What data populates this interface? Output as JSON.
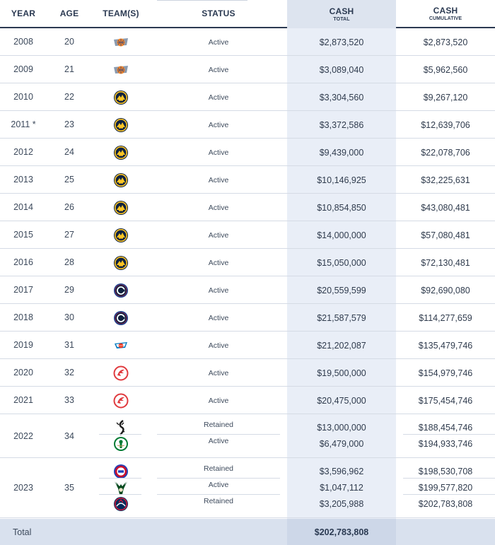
{
  "header": {
    "year": "YEAR",
    "age": "AGE",
    "teams": "TEAM(S)",
    "status": "STATUS",
    "cash_total": "CASH",
    "cash_total_sub": "TOTAL",
    "cash_cumulative": "CASH",
    "cash_cumulative_sub": "CUMULATIVE"
  },
  "rows": [
    {
      "year": "2008",
      "age": "20",
      "entries": [
        {
          "team_icon": "knicks-logo-icon",
          "status": "Active",
          "cash": "$2,873,520",
          "cumulative": "$2,873,520"
        }
      ]
    },
    {
      "year": "2009",
      "age": "21",
      "entries": [
        {
          "team_icon": "knicks-logo-icon",
          "status": "Active",
          "cash": "$3,089,040",
          "cumulative": "$5,962,560"
        }
      ]
    },
    {
      "year": "2010",
      "age": "22",
      "entries": [
        {
          "team_icon": "nuggets-logo-icon",
          "status": "Active",
          "cash": "$3,304,560",
          "cumulative": "$9,267,120"
        }
      ]
    },
    {
      "year": "2011 *",
      "age": "23",
      "entries": [
        {
          "team_icon": "nuggets-logo-icon",
          "status": "Active",
          "cash": "$3,372,586",
          "cumulative": "$12,639,706"
        }
      ]
    },
    {
      "year": "2012",
      "age": "24",
      "entries": [
        {
          "team_icon": "nuggets-logo-icon",
          "status": "Active",
          "cash": "$9,439,000",
          "cumulative": "$22,078,706"
        }
      ]
    },
    {
      "year": "2013",
      "age": "25",
      "entries": [
        {
          "team_icon": "nuggets-logo-icon",
          "status": "Active",
          "cash": "$10,146,925",
          "cumulative": "$32,225,631"
        }
      ]
    },
    {
      "year": "2014",
      "age": "26",
      "entries": [
        {
          "team_icon": "nuggets-logo-icon",
          "status": "Active",
          "cash": "$10,854,850",
          "cumulative": "$43,080,481"
        }
      ]
    },
    {
      "year": "2015",
      "age": "27",
      "entries": [
        {
          "team_icon": "nuggets-logo-icon",
          "status": "Active",
          "cash": "$14,000,000",
          "cumulative": "$57,080,481"
        }
      ]
    },
    {
      "year": "2016",
      "age": "28",
      "entries": [
        {
          "team_icon": "nuggets-logo-icon",
          "status": "Active",
          "cash": "$15,050,000",
          "cumulative": "$72,130,481"
        }
      ]
    },
    {
      "year": "2017",
      "age": "29",
      "entries": [
        {
          "team_icon": "clippers-logo-icon",
          "status": "Active",
          "cash": "$20,559,599",
          "cumulative": "$92,690,080"
        }
      ]
    },
    {
      "year": "2018",
      "age": "30",
      "entries": [
        {
          "team_icon": "clippers-logo-icon",
          "status": "Active",
          "cash": "$21,587,579",
          "cumulative": "$114,277,659"
        }
      ]
    },
    {
      "year": "2019",
      "age": "31",
      "entries": [
        {
          "team_icon": "thunder-logo-icon",
          "status": "Active",
          "cash": "$21,202,087",
          "cumulative": "$135,479,746"
        }
      ]
    },
    {
      "year": "2020",
      "age": "32",
      "entries": [
        {
          "team_icon": "hawks-logo-icon",
          "status": "Active",
          "cash": "$19,500,000",
          "cumulative": "$154,979,746"
        }
      ]
    },
    {
      "year": "2021",
      "age": "33",
      "entries": [
        {
          "team_icon": "hawks-logo-icon",
          "status": "Active",
          "cash": "$20,475,000",
          "cumulative": "$175,454,746"
        }
      ]
    },
    {
      "year": "2022",
      "age": "34",
      "entries": [
        {
          "team_icon": "spurs-logo-icon",
          "status": "Retained",
          "cash": "$13,000,000",
          "cumulative": "$188,454,746"
        },
        {
          "team_icon": "celtics-logo-icon",
          "status": "Active",
          "cash": "$6,479,000",
          "cumulative": "$194,933,746"
        }
      ]
    },
    {
      "year": "2023",
      "age": "35",
      "entries": [
        {
          "team_icon": "pistons-logo-icon",
          "status": "Retained",
          "cash": "$3,596,962",
          "cumulative": "$198,530,708"
        },
        {
          "team_icon": "bucks-logo-icon",
          "status": "Active",
          "cash": "$1,047,112",
          "cumulative": "$199,577,820"
        },
        {
          "team_icon": "wizards-logo-icon",
          "status": "Retained",
          "cash": "$3,205,988",
          "cumulative": "$202,783,808"
        }
      ]
    }
  ],
  "footer": {
    "label": "Total",
    "total": "$202,783,808"
  },
  "colors": {
    "header_text": "#2b3a52",
    "cash_column_bg": "#e9eef7",
    "footer_bg": "#d9e1ee"
  }
}
